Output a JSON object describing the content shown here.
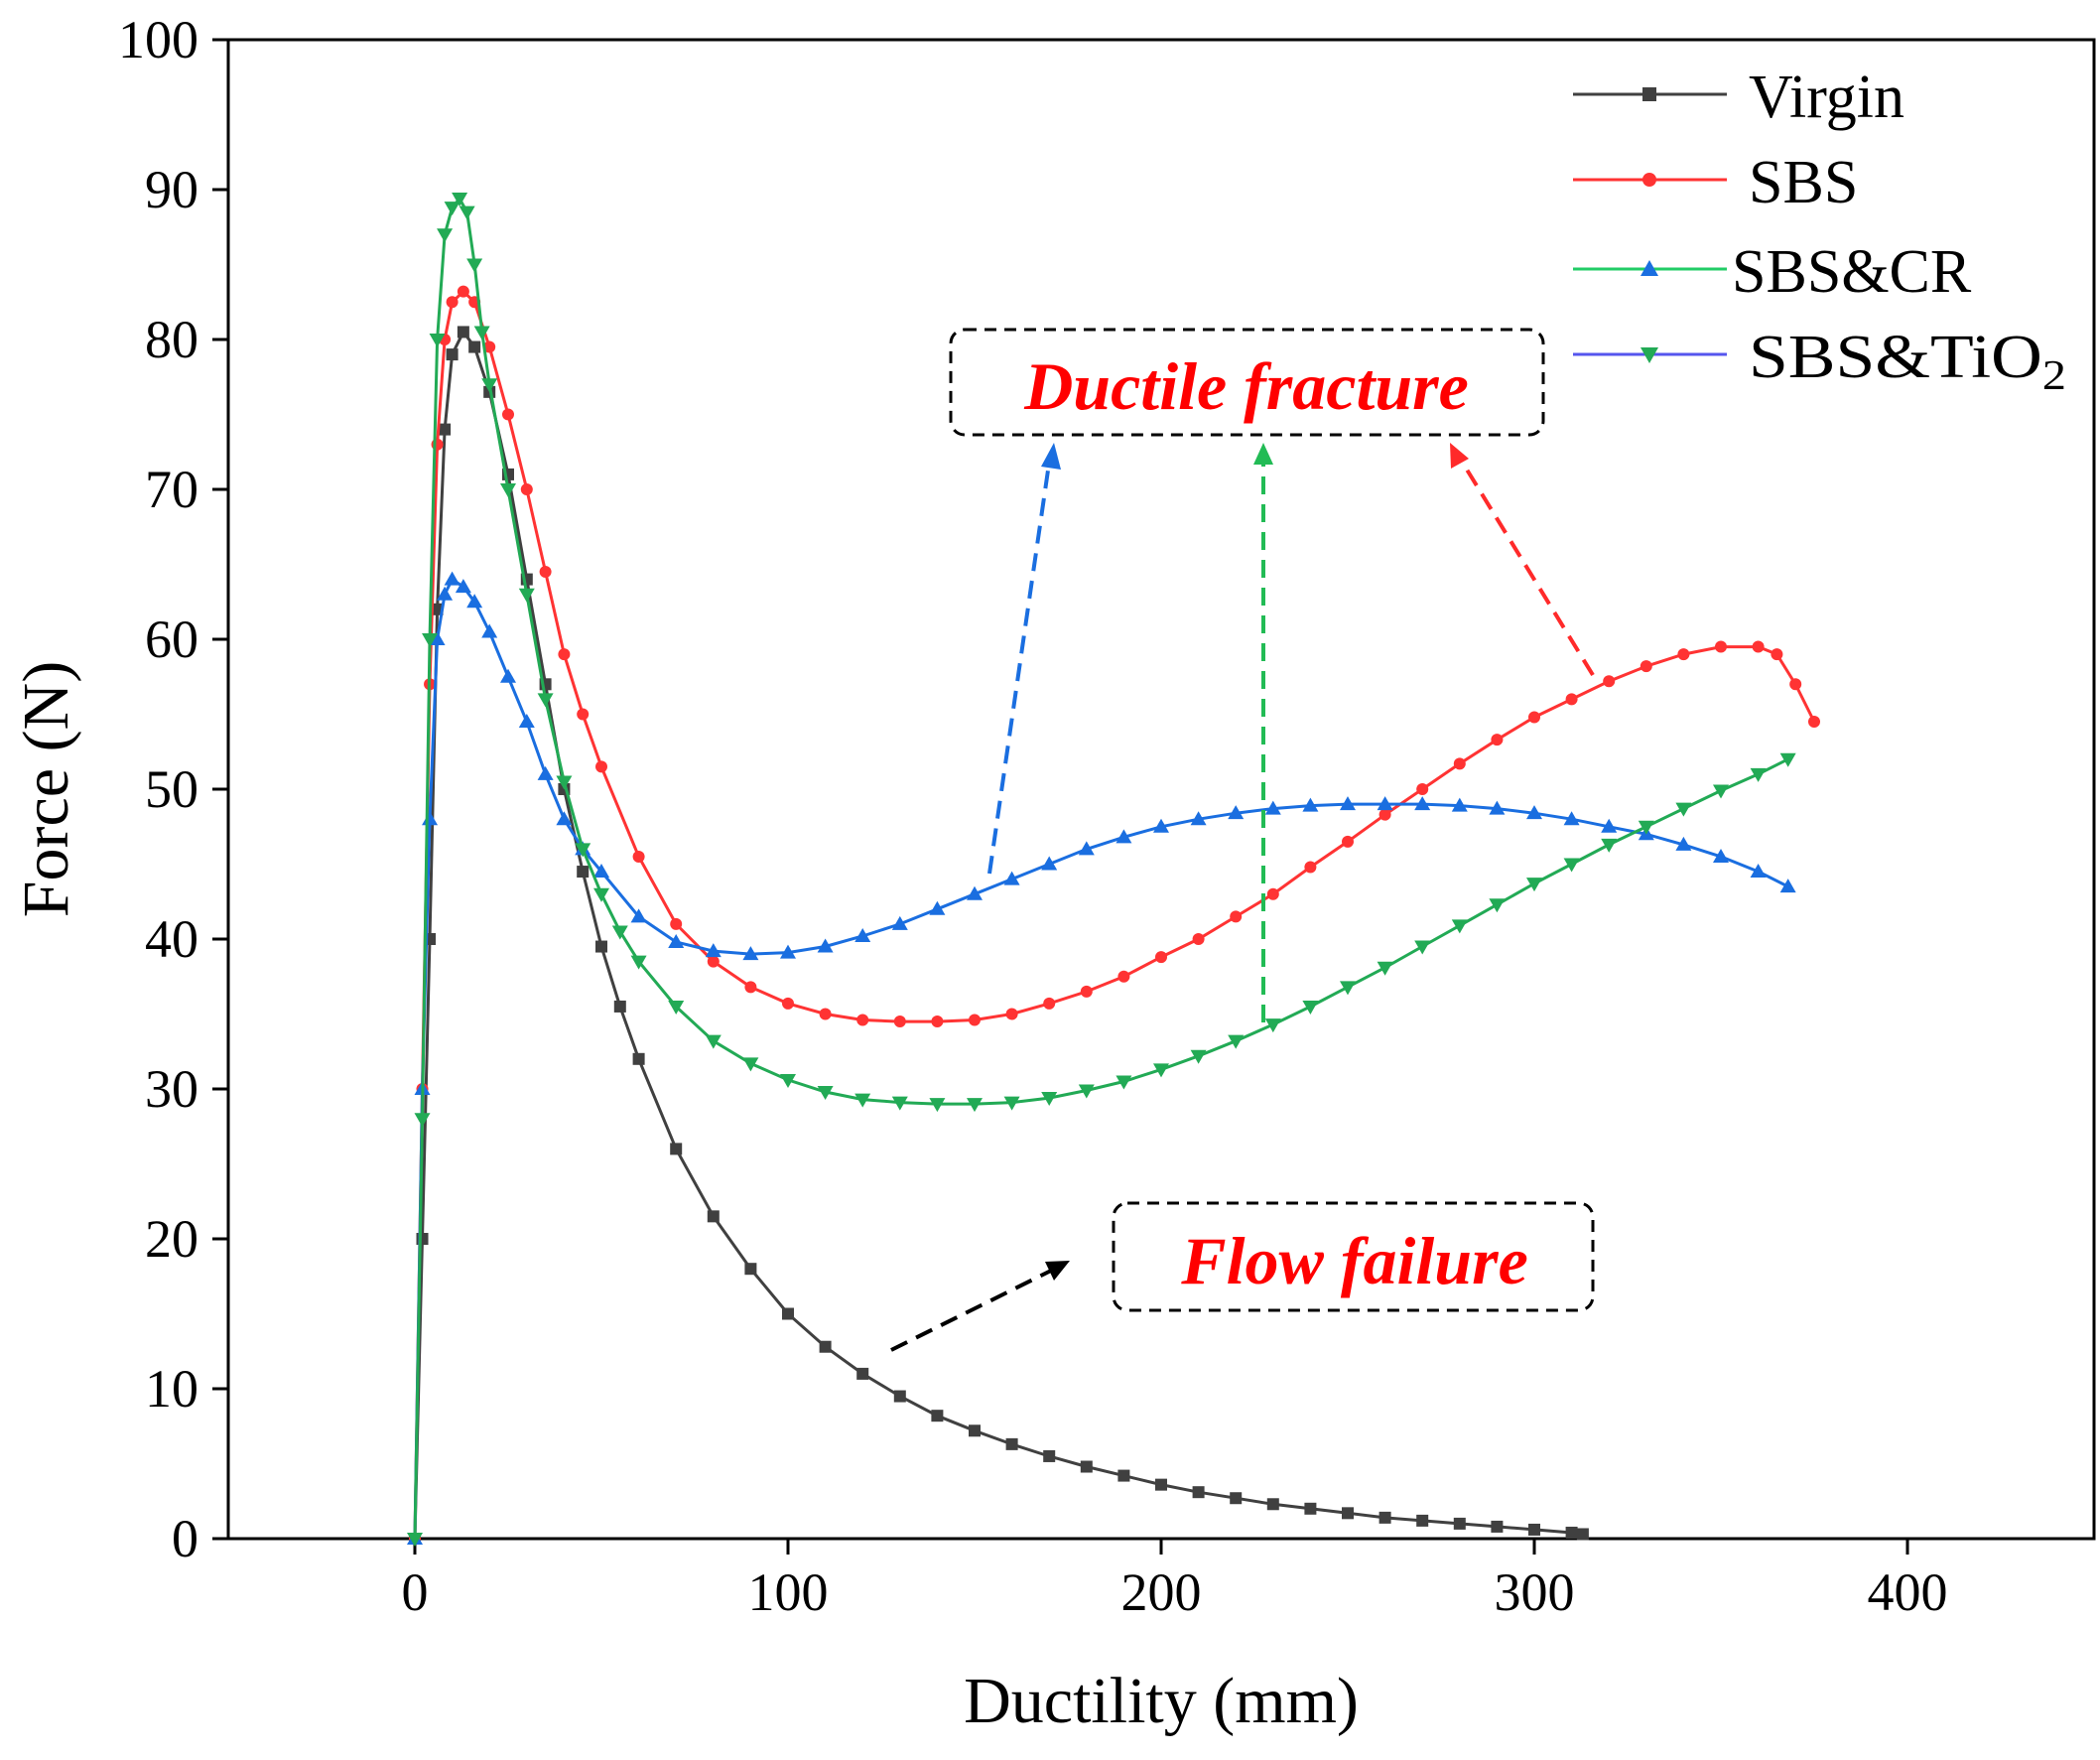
{
  "chart_data": {
    "type": "line",
    "title": "",
    "xlabel": "Ductility (mm)",
    "ylabel": "Force (N)",
    "xlim": [
      -50,
      450
    ],
    "ylim": [
      0,
      100
    ],
    "xticks": [
      0,
      100,
      200,
      300,
      400
    ],
    "yticks": [
      0,
      10,
      20,
      30,
      40,
      50,
      60,
      70,
      80,
      90,
      100
    ],
    "grid": false,
    "legend_position": "top-right",
    "series": [
      {
        "name": "Virgin",
        "color": "#404040",
        "marker": "square",
        "x": [
          0,
          2,
          4,
          6,
          8,
          10,
          13,
          16,
          20,
          25,
          30,
          35,
          40,
          45,
          50,
          55,
          60,
          70,
          80,
          90,
          100,
          110,
          120,
          130,
          140,
          150,
          160,
          170,
          180,
          190,
          200,
          210,
          220,
          230,
          240,
          250,
          260,
          270,
          280,
          290,
          300,
          310,
          313
        ],
        "y": [
          0,
          20,
          40,
          62,
          74,
          79,
          80.5,
          79.5,
          76.5,
          71,
          64,
          57,
          50,
          44.5,
          39.5,
          35.5,
          32,
          26,
          21.5,
          18,
          15,
          12.8,
          11,
          9.5,
          8.2,
          7.2,
          6.3,
          5.5,
          4.8,
          4.2,
          3.6,
          3.1,
          2.7,
          2.3,
          2.0,
          1.7,
          1.4,
          1.2,
          1.0,
          0.8,
          0.6,
          0.4,
          0.3
        ]
      },
      {
        "name": "SBS",
        "color": "#ff3333",
        "marker": "circle",
        "x": [
          0,
          2,
          4,
          6,
          8,
          10,
          13,
          16,
          20,
          25,
          30,
          35,
          40,
          45,
          50,
          60,
          70,
          80,
          90,
          100,
          110,
          120,
          130,
          140,
          150,
          160,
          170,
          180,
          190,
          200,
          210,
          220,
          230,
          240,
          250,
          260,
          270,
          280,
          290,
          300,
          310,
          320,
          330,
          340,
          350,
          360,
          365,
          370,
          375
        ],
        "y": [
          0,
          30,
          57,
          73,
          80,
          82.5,
          83.2,
          82.5,
          79.5,
          75,
          70,
          64.5,
          59,
          55,
          51.5,
          45.5,
          41,
          38.5,
          36.8,
          35.7,
          35,
          34.6,
          34.5,
          34.5,
          34.6,
          35,
          35.7,
          36.5,
          37.5,
          38.8,
          40,
          41.5,
          43,
          44.8,
          46.5,
          48.3,
          50,
          51.7,
          53.3,
          54.8,
          56,
          57.2,
          58.2,
          59,
          59.5,
          59.5,
          59,
          57,
          54.5
        ]
      },
      {
        "name": "SBS&CR",
        "color": "#1a6ee0",
        "marker": "triangle-up",
        "x": [
          0,
          2,
          4,
          6,
          8,
          10,
          13,
          16,
          20,
          25,
          30,
          35,
          40,
          45,
          50,
          60,
          70,
          80,
          90,
          100,
          110,
          120,
          130,
          140,
          150,
          160,
          170,
          180,
          190,
          200,
          210,
          220,
          230,
          240,
          250,
          260,
          270,
          280,
          290,
          300,
          310,
          320,
          330,
          340,
          350,
          360,
          368
        ],
        "y": [
          0,
          30,
          48,
          60,
          63,
          64,
          63.5,
          62.5,
          60.5,
          57.5,
          54.5,
          51,
          48,
          46,
          44.5,
          41.5,
          39.8,
          39.2,
          39,
          39.1,
          39.5,
          40.2,
          41,
          42,
          43,
          44,
          45,
          46,
          46.8,
          47.5,
          48,
          48.4,
          48.7,
          48.9,
          49,
          49,
          49,
          48.9,
          48.7,
          48.4,
          48,
          47.5,
          47,
          46.3,
          45.5,
          44.5,
          43.5
        ]
      },
      {
        "name": "SBS&TiO2",
        "color": "#22aa55",
        "marker": "triangle-down",
        "x": [
          0,
          2,
          4,
          6,
          8,
          10,
          12,
          14,
          16,
          18,
          20,
          25,
          30,
          35,
          40,
          45,
          50,
          55,
          60,
          70,
          80,
          90,
          100,
          110,
          120,
          130,
          140,
          150,
          160,
          170,
          180,
          190,
          200,
          210,
          220,
          230,
          240,
          250,
          260,
          270,
          280,
          290,
          300,
          310,
          320,
          330,
          340,
          350,
          360,
          368
        ],
        "y": [
          0,
          28,
          60,
          80,
          87,
          88.8,
          89.4,
          88.5,
          85,
          80.5,
          77,
          70,
          63,
          56,
          50.5,
          46,
          43,
          40.5,
          38.5,
          35.5,
          33.2,
          31.7,
          30.6,
          29.8,
          29.3,
          29.1,
          29,
          29,
          29.1,
          29.4,
          29.9,
          30.5,
          31.3,
          32.2,
          33.2,
          34.3,
          35.5,
          36.8,
          38.1,
          39.5,
          40.9,
          42.3,
          43.7,
          45,
          46.3,
          47.5,
          48.7,
          49.9,
          51,
          52
        ]
      }
    ],
    "annotations": [
      {
        "name": "ductile-fracture",
        "text": "Ductile fracture"
      },
      {
        "name": "flow-failure",
        "text": "Flow failure"
      }
    ]
  }
}
